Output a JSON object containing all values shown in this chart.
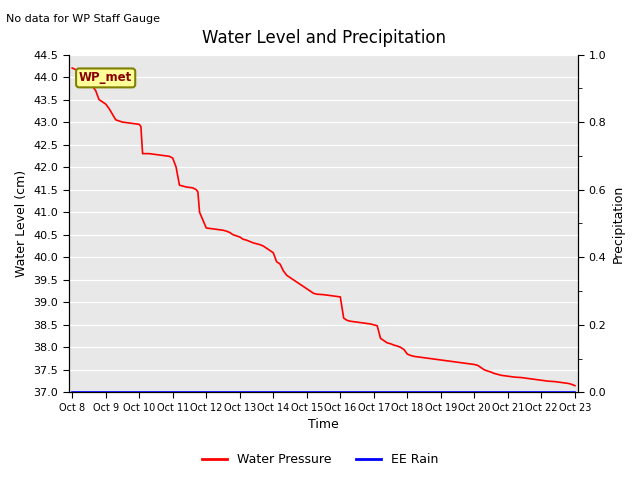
{
  "title": "Water Level and Precipitation",
  "top_left_text": "No data for WP Staff Gauge",
  "ylabel_left": "Water Level (cm)",
  "ylabel_right": "Precipitation",
  "xlabel": "Time",
  "ylim_left": [
    37.0,
    44.5
  ],
  "ylim_right": [
    0.0,
    1.0
  ],
  "yticks_left": [
    37.0,
    37.5,
    38.0,
    38.5,
    39.0,
    39.5,
    40.0,
    40.5,
    41.0,
    41.5,
    42.0,
    42.5,
    43.0,
    43.5,
    44.0,
    44.5
  ],
  "yticks_right_major": [
    0.0,
    0.2,
    0.4,
    0.6,
    0.8,
    1.0
  ],
  "yticks_right_minor": [
    0.1,
    0.3,
    0.5,
    0.7,
    0.9
  ],
  "xtick_labels": [
    "Oct 8",
    "Oct 9",
    "Oct 10",
    "Oct 11",
    "Oct 12",
    "Oct 13",
    "Oct 14",
    "Oct 15",
    "Oct 16",
    "Oct 17",
    "Oct 18",
    "Oct 19",
    "Oct 20",
    "Oct 21",
    "Oct 22",
    "Oct 23"
  ],
  "legend_labels": [
    "Water Pressure",
    "EE Rain"
  ],
  "legend_colors": [
    "#ff0000",
    "#0000ff"
  ],
  "wp_met_label": "WP_met",
  "wp_met_bg": "#ffff99",
  "wp_met_border": "#808000",
  "line_color": "#ff0000",
  "rain_color": "#0000ff",
  "background_color": "#e8e8e8",
  "water_x": [
    0.0,
    0.15,
    0.3,
    0.5,
    0.7,
    0.8,
    1.0,
    1.1,
    1.3,
    1.5,
    1.7,
    1.8,
    1.9,
    2.0,
    2.05,
    2.1,
    2.3,
    2.5,
    2.6,
    2.7,
    2.8,
    2.9,
    3.0,
    3.1,
    3.2,
    3.4,
    3.5,
    3.6,
    3.7,
    3.75,
    3.8,
    4.0,
    4.1,
    4.2,
    4.3,
    4.4,
    4.5,
    4.6,
    4.7,
    4.8,
    5.0,
    5.1,
    5.2,
    5.3,
    5.4,
    5.5,
    5.6,
    5.7,
    5.8,
    5.9,
    6.0,
    6.1,
    6.2,
    6.3,
    6.4,
    6.5,
    6.6,
    6.7,
    6.8,
    6.9,
    7.0,
    7.1,
    7.2,
    7.3,
    7.5,
    7.6,
    7.7,
    7.8,
    7.9,
    8.0,
    8.1,
    8.2,
    8.3,
    8.4,
    8.5,
    8.6,
    8.7,
    8.8,
    8.9,
    9.0,
    9.1,
    9.2,
    9.3,
    9.4,
    9.5,
    9.6,
    9.7,
    9.8,
    9.9,
    10.0,
    10.1,
    10.2,
    10.3,
    10.4,
    10.5,
    10.6,
    10.7,
    10.8,
    10.9,
    11.0,
    11.1,
    11.2,
    11.3,
    11.4,
    11.5,
    11.6,
    11.7,
    11.8,
    11.9,
    12.0,
    12.1,
    12.2,
    12.3,
    12.5,
    12.6,
    12.7,
    12.8,
    12.9,
    13.0,
    13.1,
    13.2,
    13.4,
    13.5,
    13.6,
    13.7,
    13.8,
    13.9,
    14.0,
    14.1,
    14.2,
    14.4,
    14.6,
    14.8,
    14.9,
    15.0
  ],
  "water_y": [
    44.2,
    44.15,
    44.1,
    43.9,
    43.7,
    43.5,
    43.4,
    43.3,
    43.05,
    43.0,
    42.98,
    42.97,
    42.96,
    42.95,
    42.9,
    42.3,
    42.3,
    42.28,
    42.27,
    42.26,
    42.25,
    42.24,
    42.2,
    42.0,
    41.6,
    41.56,
    41.55,
    41.54,
    41.5,
    41.45,
    41.0,
    40.65,
    40.64,
    40.63,
    40.62,
    40.61,
    40.6,
    40.58,
    40.55,
    40.5,
    40.45,
    40.4,
    40.38,
    40.35,
    40.32,
    40.3,
    40.28,
    40.25,
    40.2,
    40.15,
    40.1,
    39.9,
    39.85,
    39.7,
    39.6,
    39.55,
    39.5,
    39.45,
    39.4,
    39.35,
    39.3,
    39.25,
    39.2,
    39.18,
    39.17,
    39.16,
    39.15,
    39.14,
    39.13,
    39.12,
    38.65,
    38.6,
    38.58,
    38.57,
    38.56,
    38.55,
    38.54,
    38.53,
    38.52,
    38.5,
    38.48,
    38.2,
    38.15,
    38.1,
    38.08,
    38.05,
    38.03,
    38.0,
    37.95,
    37.85,
    37.82,
    37.8,
    37.79,
    37.78,
    37.77,
    37.76,
    37.75,
    37.74,
    37.73,
    37.72,
    37.71,
    37.7,
    37.69,
    37.68,
    37.67,
    37.66,
    37.65,
    37.64,
    37.63,
    37.62,
    37.6,
    37.55,
    37.5,
    37.45,
    37.42,
    37.4,
    37.38,
    37.37,
    37.36,
    37.35,
    37.34,
    37.33,
    37.32,
    37.31,
    37.3,
    37.29,
    37.28,
    37.27,
    37.26,
    37.25,
    37.24,
    37.22,
    37.2,
    37.18,
    37.15
  ]
}
